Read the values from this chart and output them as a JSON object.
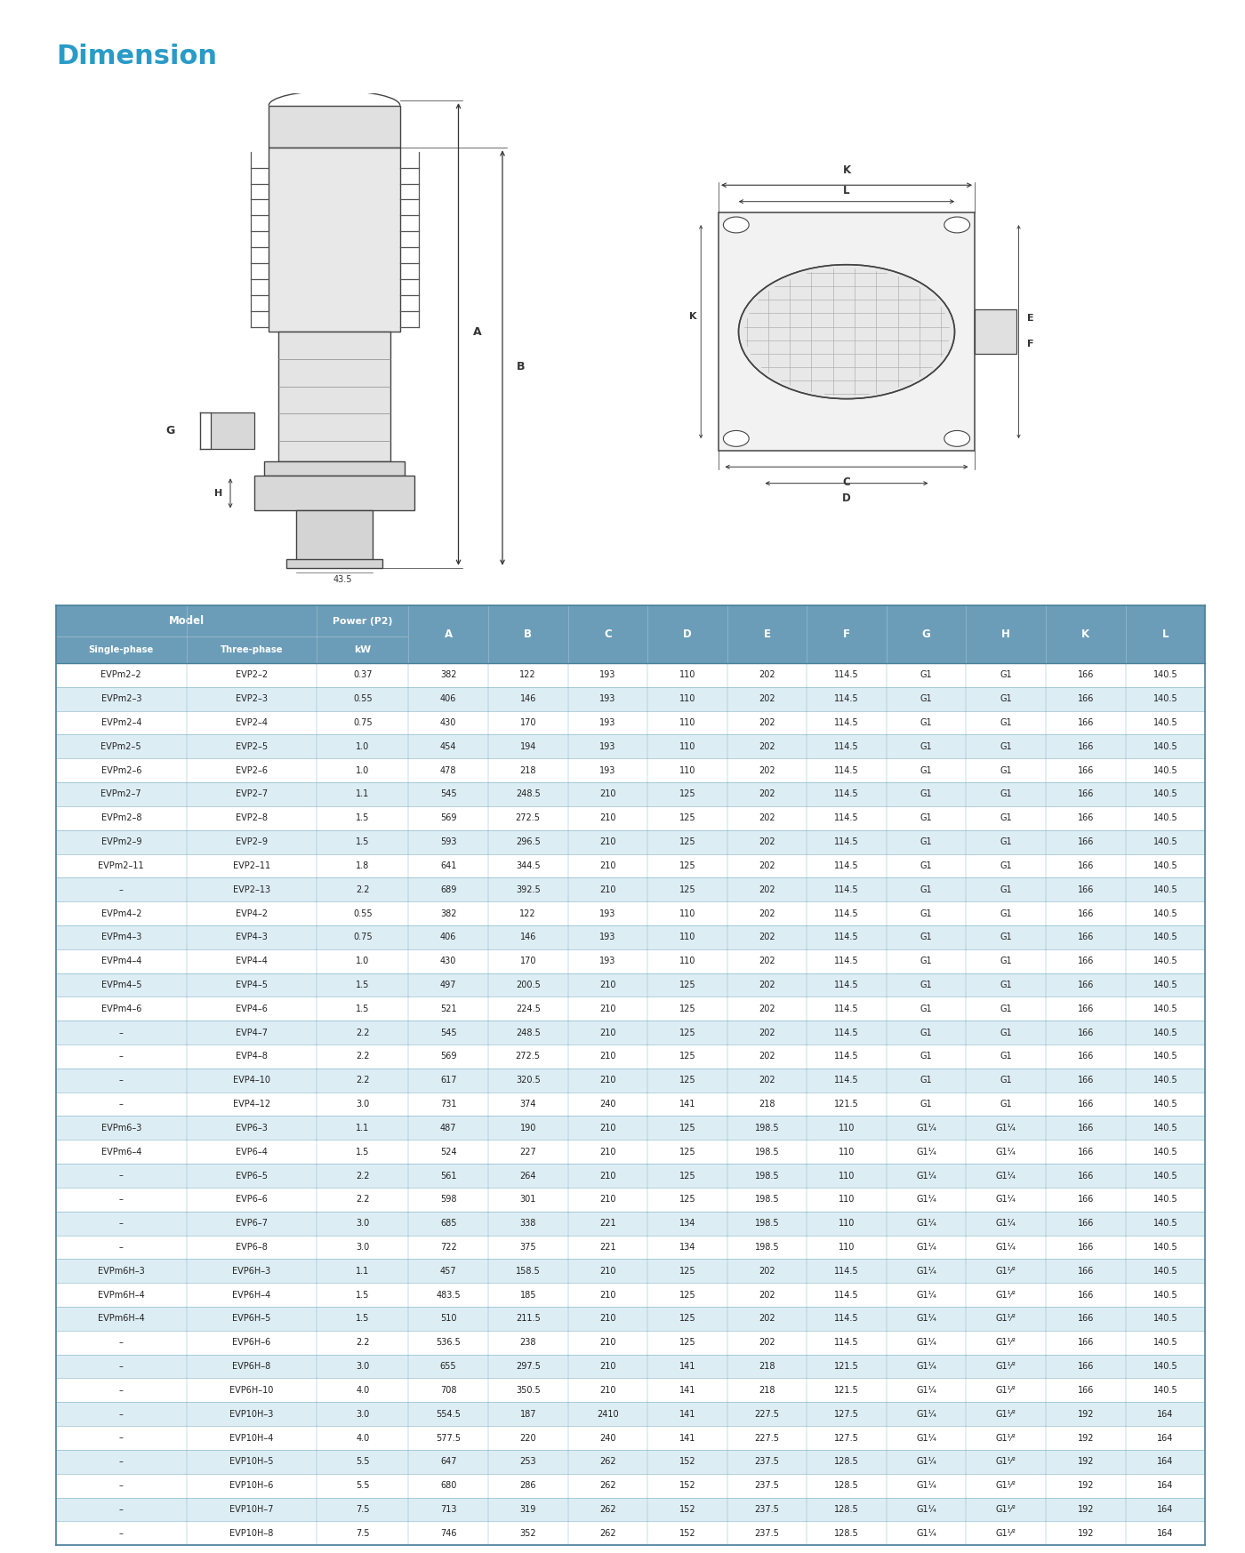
{
  "title": "Dimension",
  "title_color": "#2a9bc7",
  "header_bg": "#6b9db8",
  "header_text_color": "#ffffff",
  "row_odd_bg": "#ffffff",
  "row_even_bg": "#ddedf4",
  "separator_color": "#7aafc4",
  "text_color": "#222222",
  "dim_labels": [
    "A",
    "B",
    "C",
    "D",
    "E",
    "F",
    "G",
    "H",
    "K",
    "L"
  ],
  "rows": [
    [
      "EVPm2–2",
      "EVP2–2",
      "0.37",
      "382",
      "122",
      "193",
      "110",
      "202",
      "114.5",
      "G1",
      "G1",
      "166",
      "140.5"
    ],
    [
      "EVPm2–3",
      "EVP2–3",
      "0.55",
      "406",
      "146",
      "193",
      "110",
      "202",
      "114.5",
      "G1",
      "G1",
      "166",
      "140.5"
    ],
    [
      "EVPm2–4",
      "EVP2–4",
      "0.75",
      "430",
      "170",
      "193",
      "110",
      "202",
      "114.5",
      "G1",
      "G1",
      "166",
      "140.5"
    ],
    [
      "EVPm2–5",
      "EVP2–5",
      "1.0",
      "454",
      "194",
      "193",
      "110",
      "202",
      "114.5",
      "G1",
      "G1",
      "166",
      "140.5"
    ],
    [
      "EVPm2–6",
      "EVP2–6",
      "1.0",
      "478",
      "218",
      "193",
      "110",
      "202",
      "114.5",
      "G1",
      "G1",
      "166",
      "140.5"
    ],
    [
      "EVPm2–7",
      "EVP2–7",
      "1.1",
      "545",
      "248.5",
      "210",
      "125",
      "202",
      "114.5",
      "G1",
      "G1",
      "166",
      "140.5"
    ],
    [
      "EVPm2–8",
      "EVP2–8",
      "1.5",
      "569",
      "272.5",
      "210",
      "125",
      "202",
      "114.5",
      "G1",
      "G1",
      "166",
      "140.5"
    ],
    [
      "EVPm2–9",
      "EVP2–9",
      "1.5",
      "593",
      "296.5",
      "210",
      "125",
      "202",
      "114.5",
      "G1",
      "G1",
      "166",
      "140.5"
    ],
    [
      "EVPm2–11",
      "EVP2–11",
      "1.8",
      "641",
      "344.5",
      "210",
      "125",
      "202",
      "114.5",
      "G1",
      "G1",
      "166",
      "140.5"
    ],
    [
      "–",
      "EVP2–13",
      "2.2",
      "689",
      "392.5",
      "210",
      "125",
      "202",
      "114.5",
      "G1",
      "G1",
      "166",
      "140.5"
    ],
    [
      "EVPm4–2",
      "EVP4–2",
      "0.55",
      "382",
      "122",
      "193",
      "110",
      "202",
      "114.5",
      "G1",
      "G1",
      "166",
      "140.5"
    ],
    [
      "EVPm4–3",
      "EVP4–3",
      "0.75",
      "406",
      "146",
      "193",
      "110",
      "202",
      "114.5",
      "G1",
      "G1",
      "166",
      "140.5"
    ],
    [
      "EVPm4–4",
      "EVP4–4",
      "1.0",
      "430",
      "170",
      "193",
      "110",
      "202",
      "114.5",
      "G1",
      "G1",
      "166",
      "140.5"
    ],
    [
      "EVPm4–5",
      "EVP4–5",
      "1.5",
      "497",
      "200.5",
      "210",
      "125",
      "202",
      "114.5",
      "G1",
      "G1",
      "166",
      "140.5"
    ],
    [
      "EVPm4–6",
      "EVP4–6",
      "1.5",
      "521",
      "224.5",
      "210",
      "125",
      "202",
      "114.5",
      "G1",
      "G1",
      "166",
      "140.5"
    ],
    [
      "–",
      "EVP4–7",
      "2.2",
      "545",
      "248.5",
      "210",
      "125",
      "202",
      "114.5",
      "G1",
      "G1",
      "166",
      "140.5"
    ],
    [
      "–",
      "EVP4–8",
      "2.2",
      "569",
      "272.5",
      "210",
      "125",
      "202",
      "114.5",
      "G1",
      "G1",
      "166",
      "140.5"
    ],
    [
      "–",
      "EVP4–10",
      "2.2",
      "617",
      "320.5",
      "210",
      "125",
      "202",
      "114.5",
      "G1",
      "G1",
      "166",
      "140.5"
    ],
    [
      "–",
      "EVP4–12",
      "3.0",
      "731",
      "374",
      "240",
      "141",
      "218",
      "121.5",
      "G1",
      "G1",
      "166",
      "140.5"
    ],
    [
      "EVPm6–3",
      "EVP6–3",
      "1.1",
      "487",
      "190",
      "210",
      "125",
      "198.5",
      "110",
      "G1¹⁄₄",
      "G1¹⁄₄",
      "166",
      "140.5"
    ],
    [
      "EVPm6–4",
      "EVP6–4",
      "1.5",
      "524",
      "227",
      "210",
      "125",
      "198.5",
      "110",
      "G1¹⁄₄",
      "G1¹⁄₄",
      "166",
      "140.5"
    ],
    [
      "–",
      "EVP6–5",
      "2.2",
      "561",
      "264",
      "210",
      "125",
      "198.5",
      "110",
      "G1¹⁄₄",
      "G1¹⁄₄",
      "166",
      "140.5"
    ],
    [
      "–",
      "EVP6–6",
      "2.2",
      "598",
      "301",
      "210",
      "125",
      "198.5",
      "110",
      "G1¹⁄₄",
      "G1¹⁄₄",
      "166",
      "140.5"
    ],
    [
      "–",
      "EVP6–7",
      "3.0",
      "685",
      "338",
      "221",
      "134",
      "198.5",
      "110",
      "G1¹⁄₄",
      "G1¹⁄₄",
      "166",
      "140.5"
    ],
    [
      "–",
      "EVP6–8",
      "3.0",
      "722",
      "375",
      "221",
      "134",
      "198.5",
      "110",
      "G1¹⁄₄",
      "G1¹⁄₄",
      "166",
      "140.5"
    ],
    [
      "EVPm6H–3",
      "EVP6H–3",
      "1.1",
      "457",
      "158.5",
      "210",
      "125",
      "202",
      "114.5",
      "G1¹⁄₄",
      "G1¹⁄²",
      "166",
      "140.5"
    ],
    [
      "EVPm6H–4",
      "EVP6H–4",
      "1.5",
      "483.5",
      "185",
      "210",
      "125",
      "202",
      "114.5",
      "G1¹⁄₄",
      "G1¹⁄²",
      "166",
      "140.5"
    ],
    [
      "EVPm6H–4",
      "EVP6H–5",
      "1.5",
      "510",
      "211.5",
      "210",
      "125",
      "202",
      "114.5",
      "G1¹⁄₄",
      "G1¹⁄²",
      "166",
      "140.5"
    ],
    [
      "–",
      "EVP6H–6",
      "2.2",
      "536.5",
      "238",
      "210",
      "125",
      "202",
      "114.5",
      "G1¹⁄₄",
      "G1¹⁄²",
      "166",
      "140.5"
    ],
    [
      "–",
      "EVP6H–8",
      "3.0",
      "655",
      "297.5",
      "210",
      "141",
      "218",
      "121.5",
      "G1¹⁄₄",
      "G1¹⁄²",
      "166",
      "140.5"
    ],
    [
      "–",
      "EVP6H–10",
      "4.0",
      "708",
      "350.5",
      "210",
      "141",
      "218",
      "121.5",
      "G1¹⁄₄",
      "G1¹⁄²",
      "166",
      "140.5"
    ],
    [
      "–",
      "EVP10H–3",
      "3.0",
      "554.5",
      "187",
      "2410",
      "141",
      "227.5",
      "127.5",
      "G1¹⁄₄",
      "G1¹⁄²",
      "192",
      "164"
    ],
    [
      "–",
      "EVP10H–4",
      "4.0",
      "577.5",
      "220",
      "240",
      "141",
      "227.5",
      "127.5",
      "G1¹⁄₄",
      "G1¹⁄²",
      "192",
      "164"
    ],
    [
      "–",
      "EVP10H–5",
      "5.5",
      "647",
      "253",
      "262",
      "152",
      "237.5",
      "128.5",
      "G1¹⁄₄",
      "G1¹⁄²",
      "192",
      "164"
    ],
    [
      "–",
      "EVP10H–6",
      "5.5",
      "680",
      "286",
      "262",
      "152",
      "237.5",
      "128.5",
      "G1¹⁄₄",
      "G1¹⁄²",
      "192",
      "164"
    ],
    [
      "–",
      "EVP10H–7",
      "7.5",
      "713",
      "319",
      "262",
      "152",
      "237.5",
      "128.5",
      "G1¹⁄₄",
      "G1¹⁄²",
      "192",
      "164"
    ],
    [
      "–",
      "EVP10H–8",
      "7.5",
      "746",
      "352",
      "262",
      "152",
      "237.5",
      "128.5",
      "G1¹⁄₄",
      "G1¹⁄²",
      "192",
      "164"
    ]
  ]
}
